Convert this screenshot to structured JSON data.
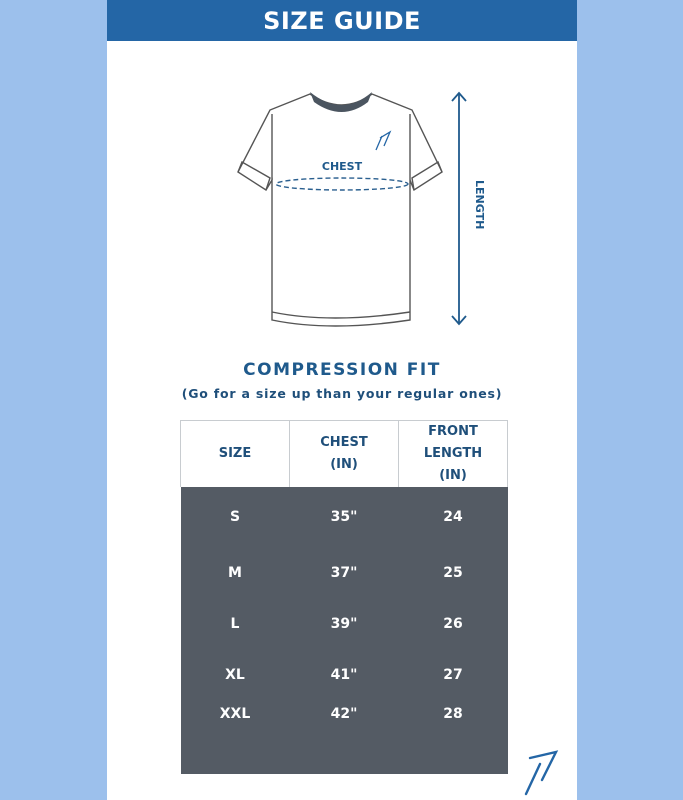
{
  "header": {
    "title": "SIZE GUIDE"
  },
  "diagram": {
    "chest_label": "CHEST",
    "length_label": "LENGTH"
  },
  "fit": {
    "title": "COMPRESSION FIT",
    "subtitle": "(Go for a size up than your regular ones)"
  },
  "table": {
    "headers": [
      {
        "label": "SIZE",
        "unit": ""
      },
      {
        "label": "CHEST",
        "unit": "(IN)"
      },
      {
        "label": "FRONT LENGTH",
        "unit": "(IN)"
      }
    ],
    "rows": [
      {
        "size": "S",
        "chest": "35\"",
        "length": "24"
      },
      {
        "size": "M",
        "chest": "37\"",
        "length": "25"
      },
      {
        "size": "L",
        "chest": "39\"",
        "length": "26"
      },
      {
        "size": "XL",
        "chest": "41\"",
        "length": "27"
      },
      {
        "size": "XXL",
        "chest": "42\"",
        "length": "28"
      }
    ]
  },
  "colors": {
    "header": "#2466a6",
    "table_body": "#545b64",
    "accent_text": "#1f5a8c",
    "background": "#9cc0ec"
  }
}
